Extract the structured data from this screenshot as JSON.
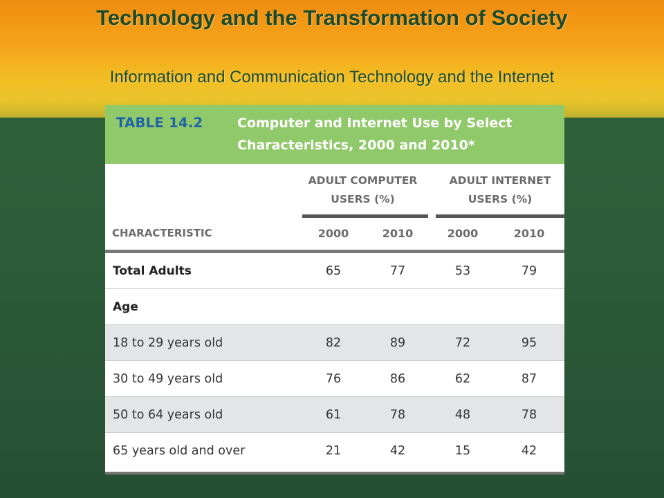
{
  "slide": {
    "title": "Technology and the Transformation of Society",
    "subtitle": "Information and Communication Technology and the Internet"
  },
  "table": {
    "label": "TABLE 14.2",
    "caption": "Computer and Internet Use by Select Characteristics, 2000 and 2010*",
    "group_headers": [
      "ADULT COMPUTER USERS (%)",
      "ADULT INTERNET USERS (%)"
    ],
    "column_headers": [
      "CHARACTERISTIC",
      "2000",
      "2010",
      "2000",
      "2010"
    ],
    "rows": [
      {
        "label": "Total Adults",
        "values": [
          "65",
          "77",
          "53",
          "79"
        ]
      },
      {
        "label": "Age",
        "values": [
          "",
          "",
          "",
          ""
        ]
      },
      {
        "label": "18 to 29 years old",
        "values": [
          "82",
          "89",
          "72",
          "95"
        ]
      },
      {
        "label": "30 to 49 years old",
        "values": [
          "76",
          "86",
          "62",
          "87"
        ]
      },
      {
        "label": "50 to 64 years old",
        "values": [
          "61",
          "78",
          "48",
          "78"
        ]
      },
      {
        "label": "65 years old and over",
        "values": [
          "21",
          "42",
          "15",
          "42"
        ]
      }
    ]
  },
  "colors": {
    "title_text": "#1d4a2a",
    "table_header_bg": "#90c969",
    "table_label": "#1f63a8",
    "row_shade": "#e4e5e6",
    "background_green": "#2f5c3a",
    "background_orange": "#f5a51a"
  }
}
